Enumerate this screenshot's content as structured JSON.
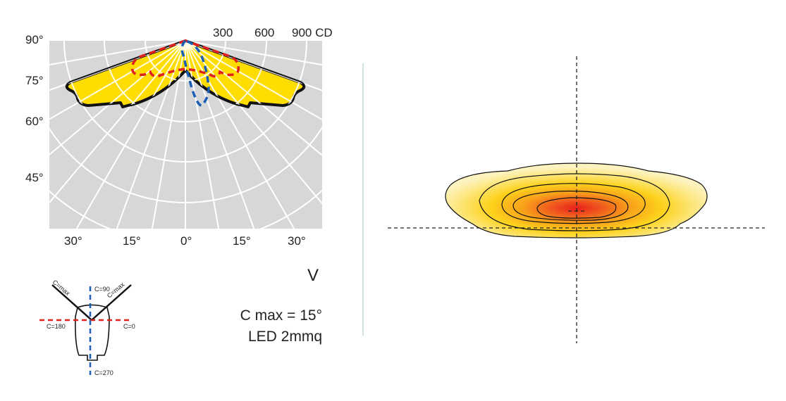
{
  "polar": {
    "cd_ticks": [
      "300",
      "600",
      "900 CD"
    ],
    "angle_left": [
      "90°",
      "75°",
      "60°",
      "45°"
    ],
    "angle_bottom": [
      "30°",
      "15°",
      "0°",
      "15°",
      "30°"
    ]
  },
  "legend": {
    "c_max_left": "C=max",
    "c_max_right": "C=max",
    "c90": "C=90",
    "c180": "C=180",
    "c0": "C=0",
    "c270": "C=270"
  },
  "info": {
    "v_label": "V",
    "c_max": "C max = 15°",
    "led": "LED 2mmq"
  },
  "colors": {
    "grid_bg": "#d6d7d9",
    "fill": "#ffdd00",
    "c0_line": "#e0201c",
    "c90_line": "#1a5fb4",
    "separator": "#cfe3e3"
  }
}
